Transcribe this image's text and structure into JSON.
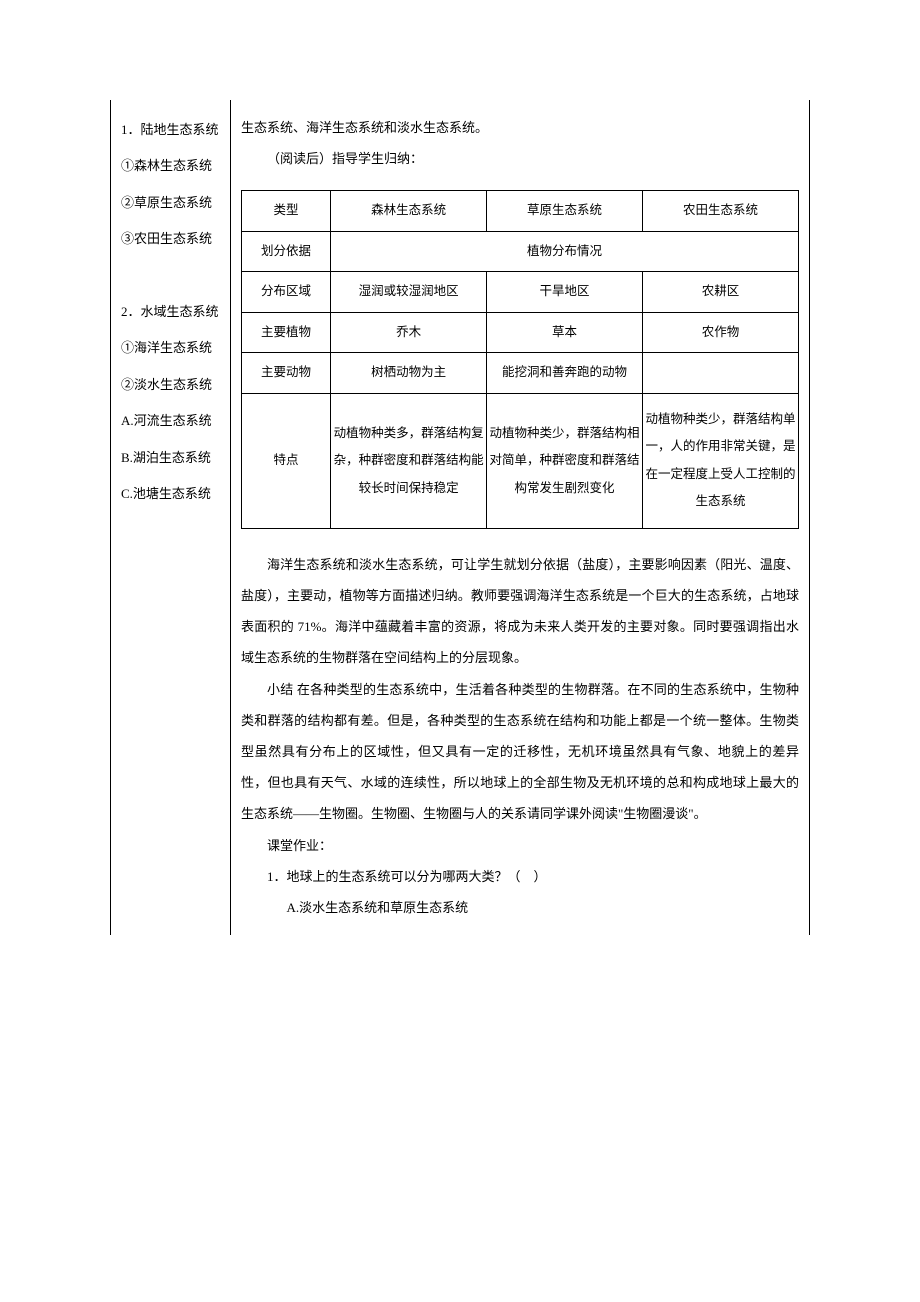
{
  "leftColumn": {
    "section1": {
      "title": "1．陆地生态系统",
      "items": [
        "①森林生态系统",
        "②草原生态系统",
        "③农田生态系统"
      ]
    },
    "section2": {
      "title": "2．水域生态系统",
      "items": [
        "①海洋生态系统",
        "②淡水生态系统",
        "A.河流生态系统",
        "B.湖泊生态系统",
        "C.池塘生态系统"
      ]
    }
  },
  "rightColumn": {
    "topLine": "生态系统、海洋生态系统和淡水生态系统。",
    "instruction": "（阅读后）指导学生归纳：",
    "table": {
      "headers": [
        "类型",
        "森林生态系统",
        "草原生态系统",
        "农田生态系统"
      ],
      "rows": [
        {
          "label": "划分依据",
          "merged": "植物分布情况"
        },
        {
          "label": "分布区域",
          "cells": [
            "湿润或较湿润地区",
            "干旱地区",
            "农耕区"
          ]
        },
        {
          "label": "主要植物",
          "cells": [
            "乔木",
            "草本",
            "农作物"
          ]
        },
        {
          "label": "主要动物",
          "cells": [
            "树栖动物为主",
            "能挖洞和善奔跑的动物",
            ""
          ]
        },
        {
          "label": "特点",
          "cells": [
            "动植物种类多，群落结构复杂，种群密度和群落结构能较长时间保持稳定",
            "动植物种类少，群落结构相对简单，种群密度和群落结构常发生剧烈变化",
            "动植物种类少，群落结构单一，人的作用非常关键，是在一定程度上受人工控制的生态系统"
          ]
        }
      ]
    },
    "para1": "海洋生态系统和淡水生态系统，可让学生就划分依据（盐度），主要影响因素（阳光、温度、盐度），主要动，植物等方面描述归纳。教师要强调海洋生态系统是一个巨大的生态系统，占地球表面积的 71%。海洋中蕴藏着丰富的资源，将成为未来人类开发的主要对象。同时要强调指出水域生态系统的生物群落在空间结构上的分层现象。",
    "para2": "小结 在各种类型的生态系统中，生活着各种类型的生物群落。在不同的生态系统中，生物种类和群落的结构都有差。但是，各种类型的生态系统在结构和功能上都是一个统一整体。生物类型虽然具有分布上的区域性，但又具有一定的迁移性，无机环境虽然具有气象、地貌上的差异性，但也具有天气、水域的连续性，所以地球上的全部生物及无机环境的总和构成地球上最大的生态系统——生物圈。生物圈、生物圈与人的关系请同学课外阅读\"生物圈漫谈\"。",
    "hwTitle": "课堂作业：",
    "q1": "1．地球上的生态系统可以分为哪两大类？（　）",
    "q1a": "A.淡水生态系统和草原生态系统"
  }
}
